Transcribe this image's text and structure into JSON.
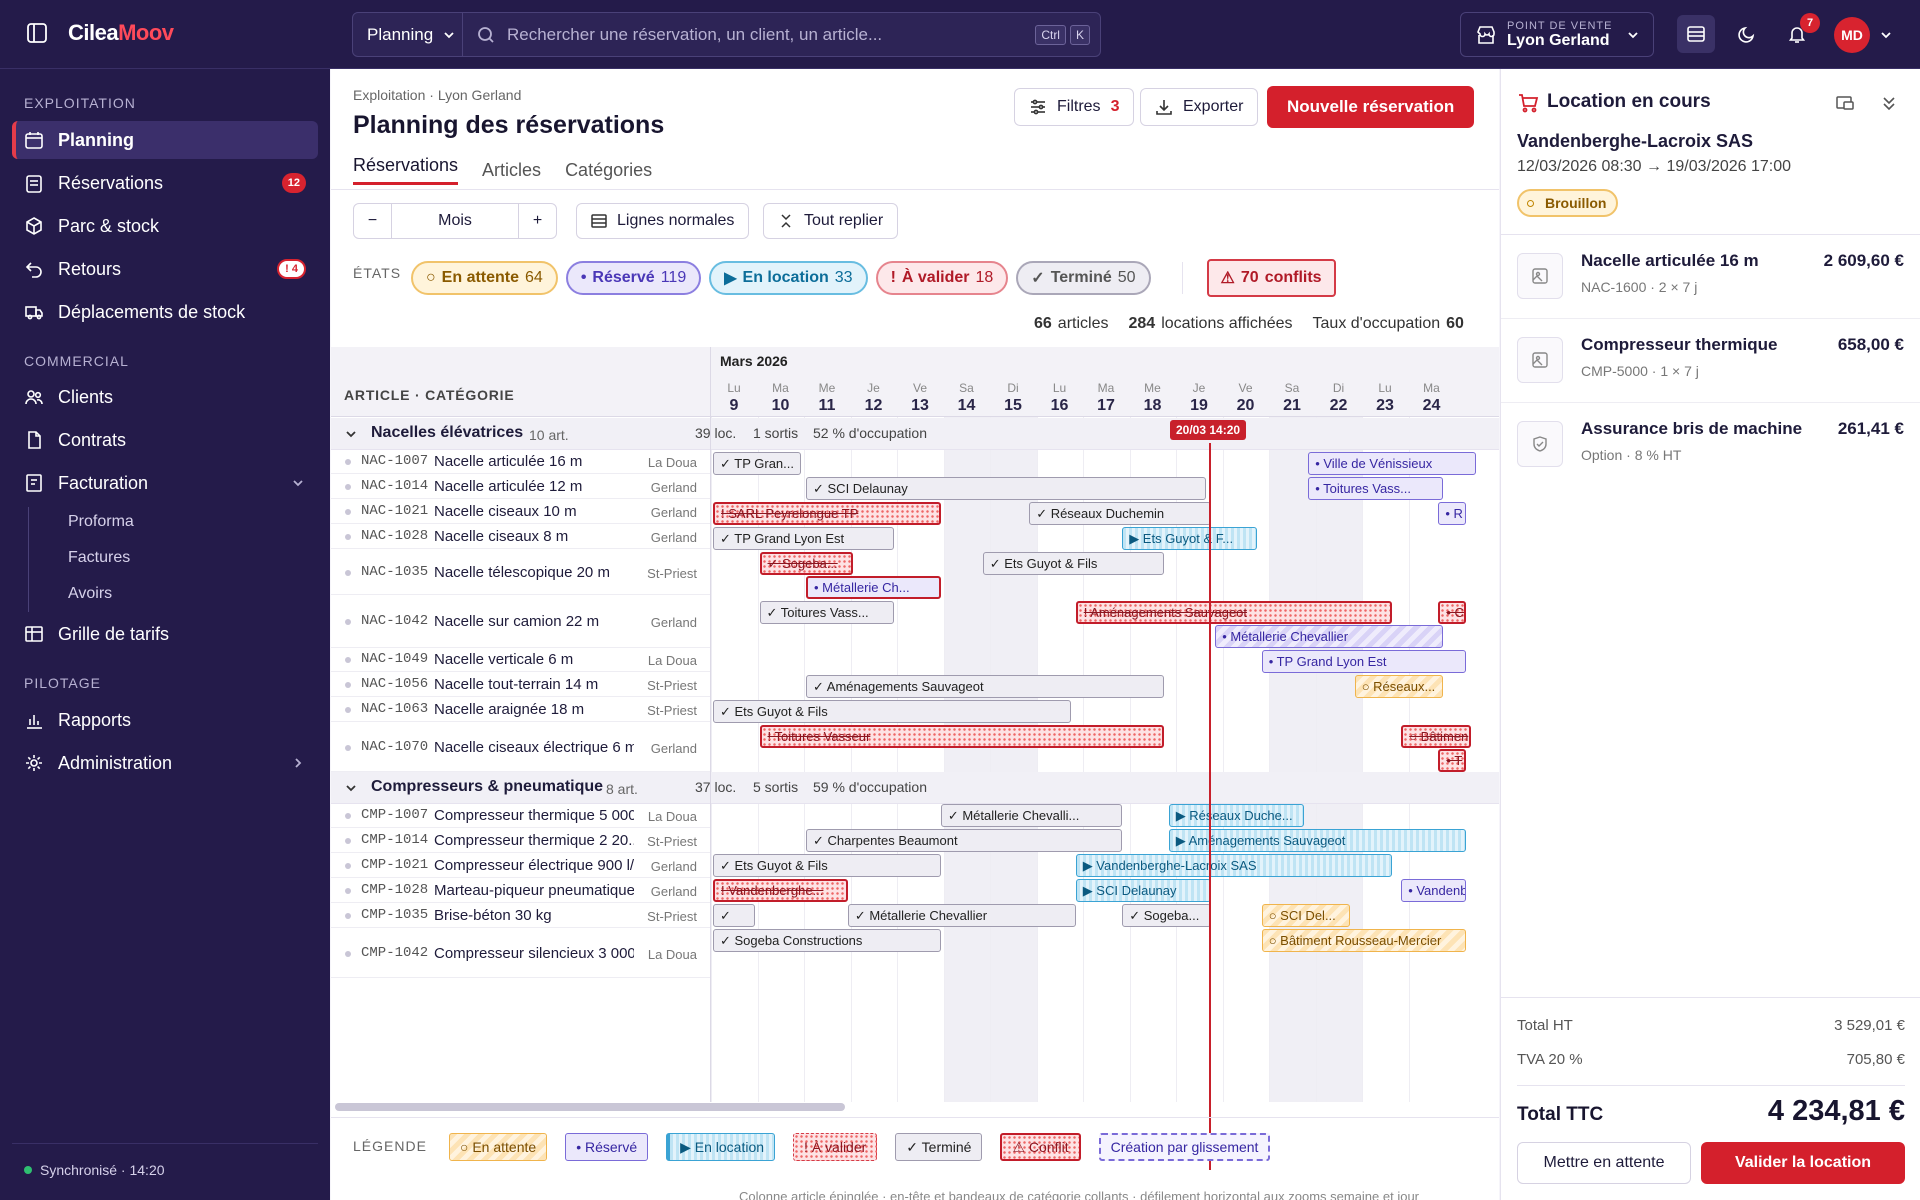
{
  "app": {
    "name_a": "Cilea",
    "name_b": "Moov"
  },
  "topbar": {
    "module": "Planning",
    "search_placeholder": "Rechercher une réservation, un client, un article...",
    "kbd1": "Ctrl",
    "kbd2": "K",
    "pos_label": "POINT DE VENTE",
    "pos_value": "Lyon Gerland",
    "notif_count": "7",
    "avatar": "MD"
  },
  "sidebar": {
    "sec_exploitation": "EXPLOITATION",
    "planning": "Planning",
    "reservations": "Réservations",
    "reservations_count": "12",
    "parc": "Parc & stock",
    "retours": "Retours",
    "retours_count": "! 4",
    "deplacements": "Déplacements de stock",
    "sec_commercial": "COMMERCIAL",
    "clients": "Clients",
    "contrats": "Contrats",
    "facturation": "Facturation",
    "proforma": "Proforma",
    "factures": "Factures",
    "avoirs": "Avoirs",
    "grille": "Grille de tarifs",
    "sec_pilotage": "PILOTAGE",
    "rapports": "Rapports",
    "admin": "Administration",
    "sync": "Synchronisé · 14:20"
  },
  "main": {
    "crumb": "Exploitation · Lyon Gerland",
    "title": "Planning des réservations",
    "filters": "Filtres",
    "filters_count": "3",
    "export": "Exporter",
    "new": "Nouvelle réservation",
    "tabs": [
      "Réservations",
      "Articles",
      "Catégories"
    ],
    "zoom": "Mois",
    "lines": "Lignes normales",
    "collapse": "Tout replier",
    "states_label": "ÉTATS",
    "states": [
      {
        "label": "En attente",
        "n": "64"
      },
      {
        "label": "Réservé",
        "n": "119"
      },
      {
        "label": "En location",
        "n": "33"
      },
      {
        "label": "À valider",
        "n": "18"
      },
      {
        "label": "Terminé",
        "n": "50"
      }
    ],
    "conflicts_n": "70",
    "conflicts_label": "conflits",
    "stats_articles_n": "66",
    "stats_articles": "articles",
    "stats_loc_n": "284",
    "stats_loc": "locations affichées",
    "stats_occ": "Taux d'occupation",
    "stats_occ_n": "60",
    "stats_occ_unit": "%",
    "col_header": "ARTICLE · CATÉGORIE",
    "month": "Mars 2026",
    "now_tag": "20/03 14:20",
    "days": [
      {
        "d": "Lu",
        "n": "9"
      },
      {
        "d": "Ma",
        "n": "10"
      },
      {
        "d": "Me",
        "n": "11"
      },
      {
        "d": "Je",
        "n": "12"
      },
      {
        "d": "Ve",
        "n": "13"
      },
      {
        "d": "Sa",
        "n": "14"
      },
      {
        "d": "Di",
        "n": "15"
      },
      {
        "d": "Lu",
        "n": "16"
      },
      {
        "d": "Ma",
        "n": "17"
      },
      {
        "d": "Me",
        "n": "18"
      },
      {
        "d": "Je",
        "n": "19"
      },
      {
        "d": "Ve",
        "n": "20"
      },
      {
        "d": "Sa",
        "n": "21"
      },
      {
        "d": "Di",
        "n": "22"
      },
      {
        "d": "Lu",
        "n": "23"
      },
      {
        "d": "Ma",
        "n": "24"
      }
    ],
    "cat1": {
      "name": "Nacelles élévatrices",
      "count": "10 art.",
      "loc": "39 loc.",
      "out": "1 sortis",
      "occ": "52 % d'occupation"
    },
    "cat2": {
      "name": "Compresseurs & pneumatique",
      "count": "8 art.",
      "loc": "37 loc.",
      "out": "5 sortis",
      "occ": "59 % d'occupation"
    },
    "rows1": [
      {
        "code": "NAC-1007",
        "name": "Nacelle articulée 16 m",
        "site": "La Doua"
      },
      {
        "code": "NAC-1014",
        "name": "Nacelle articulée 12 m",
        "site": "Gerland"
      },
      {
        "code": "NAC-1021",
        "name": "Nacelle ciseaux 10 m",
        "site": "Gerland"
      },
      {
        "code": "NAC-1028",
        "name": "Nacelle ciseaux 8 m",
        "site": "Gerland"
      },
      {
        "code": "NAC-1035",
        "name": "Nacelle télescopique 20 m",
        "site": "St-Priest"
      },
      {
        "code": "NAC-1042",
        "name": "Nacelle sur camion 22 m",
        "site": "Gerland"
      },
      {
        "code": "NAC-1049",
        "name": "Nacelle verticale 6 m",
        "site": "La Doua"
      },
      {
        "code": "NAC-1056",
        "name": "Nacelle tout-terrain 14 m",
        "site": "St-Priest"
      },
      {
        "code": "NAC-1063",
        "name": "Nacelle araignée 18 m",
        "site": "St-Priest"
      },
      {
        "code": "NAC-1070",
        "name": "Nacelle ciseaux électrique 6 m",
        "site": "Gerland"
      }
    ],
    "rows2": [
      {
        "code": "CMP-1007",
        "name": "Compresseur thermique 5 000...",
        "site": "La Doua"
      },
      {
        "code": "CMP-1014",
        "name": "Compresseur thermique 2 20...",
        "site": "St-Priest"
      },
      {
        "code": "CMP-1021",
        "name": "Compresseur électrique 900 l/...",
        "site": "Gerland"
      },
      {
        "code": "CMP-1028",
        "name": "Marteau-piqueur pneumatique",
        "site": "Gerland"
      },
      {
        "code": "CMP-1035",
        "name": "Brise-béton 30 kg",
        "site": "St-Priest"
      },
      {
        "code": "CMP-1042",
        "name": "Compresseur silencieux 3 000...",
        "site": "La Doua"
      }
    ],
    "bars": [
      {
        "t": "✓ TP Gran...",
        "k": "done"
      },
      {
        "t": "• Ville de Vénissieux",
        "k": "res"
      },
      {
        "t": "✓ SCI Delaunay",
        "k": "done"
      },
      {
        "t": "• Toitures Vass...",
        "k": "res"
      },
      {
        "t": "! SARL Peyrelongue TP",
        "k": "conf"
      },
      {
        "t": "✓ Réseaux Duchemin",
        "k": "done"
      },
      {
        "t": "• R",
        "k": "res"
      },
      {
        "t": "✓ TP Grand Lyon Est",
        "k": "done"
      },
      {
        "t": "▶ Ets Guyot & F...",
        "k": "loc"
      },
      {
        "t": "✓ Sogeba...",
        "k": "conf"
      },
      {
        "t": "✓ Ets Guyot & Fils",
        "k": "done"
      },
      {
        "t": "• Métallerie Ch...",
        "k": "resconf"
      },
      {
        "t": "✓ Toitures Vass...",
        "k": "done"
      },
      {
        "t": "! Aménagements Sauvageot",
        "k": "conf"
      },
      {
        "t": "• C",
        "k": "conf"
      },
      {
        "t": "• Métallerie Chevallier",
        "k": "resh"
      },
      {
        "t": "• TP Grand Lyon Est",
        "k": "res"
      },
      {
        "t": "✓ Aménagements Sauvageot",
        "k": "done"
      },
      {
        "t": "○ Réseaux...",
        "k": "wait"
      },
      {
        "t": "✓ Ets Guyot & Fils",
        "k": "done"
      },
      {
        "t": "! Toitures Vasseur",
        "k": "conf"
      },
      {
        "t": "○ Bâtimen",
        "k": "conf"
      },
      {
        "t": "• T",
        "k": "conf"
      },
      {
        "t": "✓ Métallerie Chevalli...",
        "k": "done"
      },
      {
        "t": "▶ Réseaux Duche...",
        "k": "loc"
      },
      {
        "t": "✓ Charpentes Beaumont",
        "k": "done"
      },
      {
        "t": "▶ Aménagements Sauvageot",
        "k": "loc"
      },
      {
        "t": "✓ Ets Guyot & Fils",
        "k": "done"
      },
      {
        "t": "▶ Vandenberghe-Lacroix SAS",
        "k": "loc"
      },
      {
        "t": "! Vandenberghe...",
        "k": "conf"
      },
      {
        "t": "▶ SCI Delaunay",
        "k": "loc"
      },
      {
        "t": "• Vandenb",
        "k": "res"
      },
      {
        "t": "✓",
        "k": "done"
      },
      {
        "t": "✓ Métallerie Chevallier",
        "k": "done"
      },
      {
        "t": "✓ Sogeba...",
        "k": "done"
      },
      {
        "t": "○ SCI Del...",
        "k": "wait"
      },
      {
        "t": "✓ Sogeba Constructions",
        "k": "done"
      },
      {
        "t": "○ Bâtiment Rousseau-Mercier",
        "k": "wait"
      }
    ],
    "legend_label": "LÉGENDE",
    "legend": [
      "○ En attente",
      "• Réservé",
      "▶ En location",
      "! À valider",
      "✓ Terminé",
      "⚠ Conflit",
      "Création par glissement"
    ],
    "footnote": "Colonne article épinglée · en-tête et bandeaux de catégorie collants · défilement horizontal aux zooms semaine et jour"
  },
  "panel": {
    "title": "Location en cours",
    "client": "Vandenberghe-Lacroix SAS",
    "dates": "12/03/2026 08:30 → 19/03/2026 17:00",
    "status": "Brouillon",
    "items": [
      {
        "name": "Nacelle articulée 16 m",
        "sub": "NAC-1600 · 2 × 7 j",
        "price": "2 609,60 €"
      },
      {
        "name": "Compresseur thermique",
        "sub": "CMP-5000 · 1 × 7 j",
        "price": "658,00 €"
      },
      {
        "name": "Assurance bris de machine",
        "sub": "Option · 8 % HT",
        "price": "261,41 €"
      }
    ],
    "total_ht_label": "Total HT",
    "total_ht": "3 529,01 €",
    "tva_label": "TVA 20 %",
    "tva": "705,80 €",
    "ttc_label": "Total TTC",
    "ttc": "4 234,81 €",
    "hold": "Mettre en attente",
    "validate": "Valider la location"
  }
}
